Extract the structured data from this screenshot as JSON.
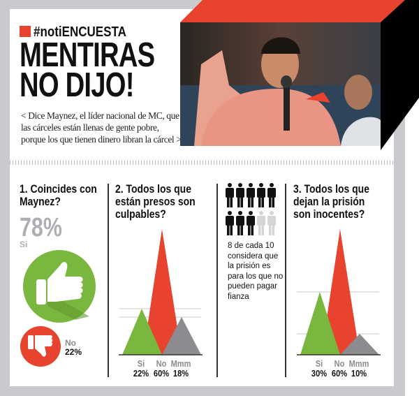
{
  "header": {
    "hashtag": "#notiENCUESTA",
    "title_line1": "MENTIRAS",
    "title_line2": "NO DIJO!",
    "subtitle": "< Dice Maynez, el líder nacional de MC, que las cárceles están llenas de gente pobre, porque los que tienen dinero libran la cárcel >"
  },
  "q1": {
    "question": "1. Coincides con Maynez?",
    "yes_value": "78%",
    "yes_label": "Si",
    "no_label": "No",
    "no_value": "22%",
    "icons": [
      "thumbs-up-icon",
      "thumbs-down-icon"
    ]
  },
  "people": {
    "filled": 8,
    "total": 10,
    "text": "8 de cada 10 considera que la prisión es para los que no pueden pagar fianza"
  },
  "colors": {
    "green": "#7ab73f",
    "red": "#e8432f",
    "gray": "#8c8c90",
    "frame": "#c9cacd"
  },
  "chart_data": [
    {
      "type": "area",
      "title": "2. Todos los que están presos son culpables?",
      "categories": [
        "Si",
        "No",
        "Mmm"
      ],
      "values": [
        22,
        60,
        18
      ],
      "value_labels": [
        "22%",
        "60%",
        "18%"
      ],
      "ylim": [
        0,
        60
      ]
    },
    {
      "type": "area",
      "title": "3. Todos los que dejan la prisión son inocentes?",
      "categories": [
        "Si",
        "No",
        "Mmm"
      ],
      "values": [
        30,
        60,
        10
      ],
      "value_labels": [
        "30%",
        "60%",
        "10%"
      ],
      "ylim": [
        0,
        60
      ]
    }
  ]
}
